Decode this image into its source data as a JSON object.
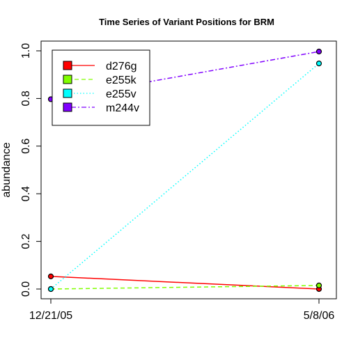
{
  "chart_data": {
    "type": "line",
    "title": "Time Series of Variant Positions for BRM",
    "xlabel": "",
    "ylabel": "abundance",
    "categories": [
      "12/21/05",
      "5/8/06"
    ],
    "ylim": [
      0,
      1
    ],
    "yticks": [
      "0.0",
      "0.2",
      "0.4",
      "0.6",
      "0.8",
      "1.0"
    ],
    "grid": false,
    "legend_position": "top-left",
    "series": [
      {
        "name": "d276g",
        "values": [
          0.053,
          0.0
        ],
        "color": "#ff0000",
        "line_style": "solid"
      },
      {
        "name": "e255k",
        "values": [
          0.0,
          0.015
        ],
        "color": "#80ff00",
        "line_style": "dashed"
      },
      {
        "name": "e255v",
        "values": [
          0.0,
          0.947
        ],
        "color": "#00ffff",
        "line_style": "dotted"
      },
      {
        "name": "m244v",
        "values": [
          0.797,
          0.997
        ],
        "color": "#8000ff",
        "line_style": "dotdash"
      }
    ]
  }
}
